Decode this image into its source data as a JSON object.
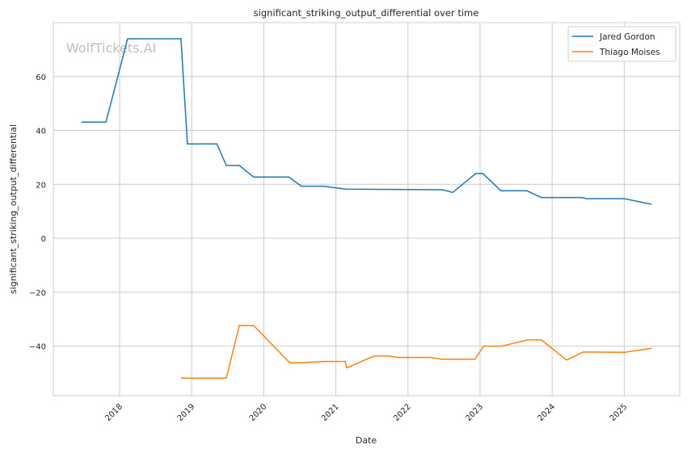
{
  "chart_data": {
    "type": "line",
    "title": "significant_striking_output_differential over time",
    "xlabel": "Date",
    "ylabel": "significant_striking_output_differential",
    "watermark": "WolfTickets.AI",
    "xlim": [
      2017.08,
      2025.77
    ],
    "ylim": [
      -58.4,
      80
    ],
    "x_ticks": [
      2018,
      2019,
      2020,
      2021,
      2022,
      2023,
      2024,
      2025
    ],
    "x_tick_labels": [
      "2018",
      "2019",
      "2020",
      "2021",
      "2022",
      "2023",
      "2024",
      "2025"
    ],
    "y_ticks": [
      -40,
      -20,
      0,
      20,
      40,
      60
    ],
    "y_tick_labels": [
      "−40",
      "−20",
      "0",
      "20",
      "40",
      "60"
    ],
    "grid": true,
    "legend_position": "top-right",
    "series": [
      {
        "name": "Jared Gordon",
        "color": "#1f77b4",
        "x": [
          2017.47,
          2017.81,
          2018.11,
          2018.85,
          2018.94,
          2019.35,
          2019.48,
          2019.66,
          2019.86,
          2020.35,
          2020.52,
          2020.83,
          2021.14,
          2022.48,
          2022.62,
          2022.94,
          2023.04,
          2023.29,
          2023.65,
          2023.85,
          2024.42,
          2024.47,
          2025.0,
          2025.38
        ],
        "y": [
          43.1,
          43.1,
          74,
          74,
          35,
          35,
          27,
          27,
          22.7,
          22.7,
          19.3,
          19.3,
          18.2,
          18,
          17,
          24,
          24,
          17.6,
          17.6,
          15.1,
          15.1,
          14.7,
          14.7,
          12.6
        ]
      },
      {
        "name": "Thiago Moises",
        "color": "#ff7f0e",
        "x": [
          2018.85,
          2019.48,
          2019.66,
          2019.86,
          2020.36,
          2020.5,
          2020.83,
          2021.13,
          2021.15,
          2021.53,
          2021.74,
          2021.85,
          2022.31,
          2022.47,
          2022.93,
          2023.05,
          2023.3,
          2023.67,
          2023.85,
          2024.2,
          2024.43,
          2025.01,
          2025.38
        ],
        "y": [
          -51.9,
          -51.9,
          -32.4,
          -32.4,
          -46.2,
          -46.2,
          -45.7,
          -45.7,
          -48.1,
          -43.7,
          -43.7,
          -44.2,
          -44.2,
          -44.9,
          -44.9,
          -40,
          -40,
          -37.7,
          -37.7,
          -45.2,
          -42.2,
          -42.3,
          -40.8
        ]
      }
    ]
  }
}
